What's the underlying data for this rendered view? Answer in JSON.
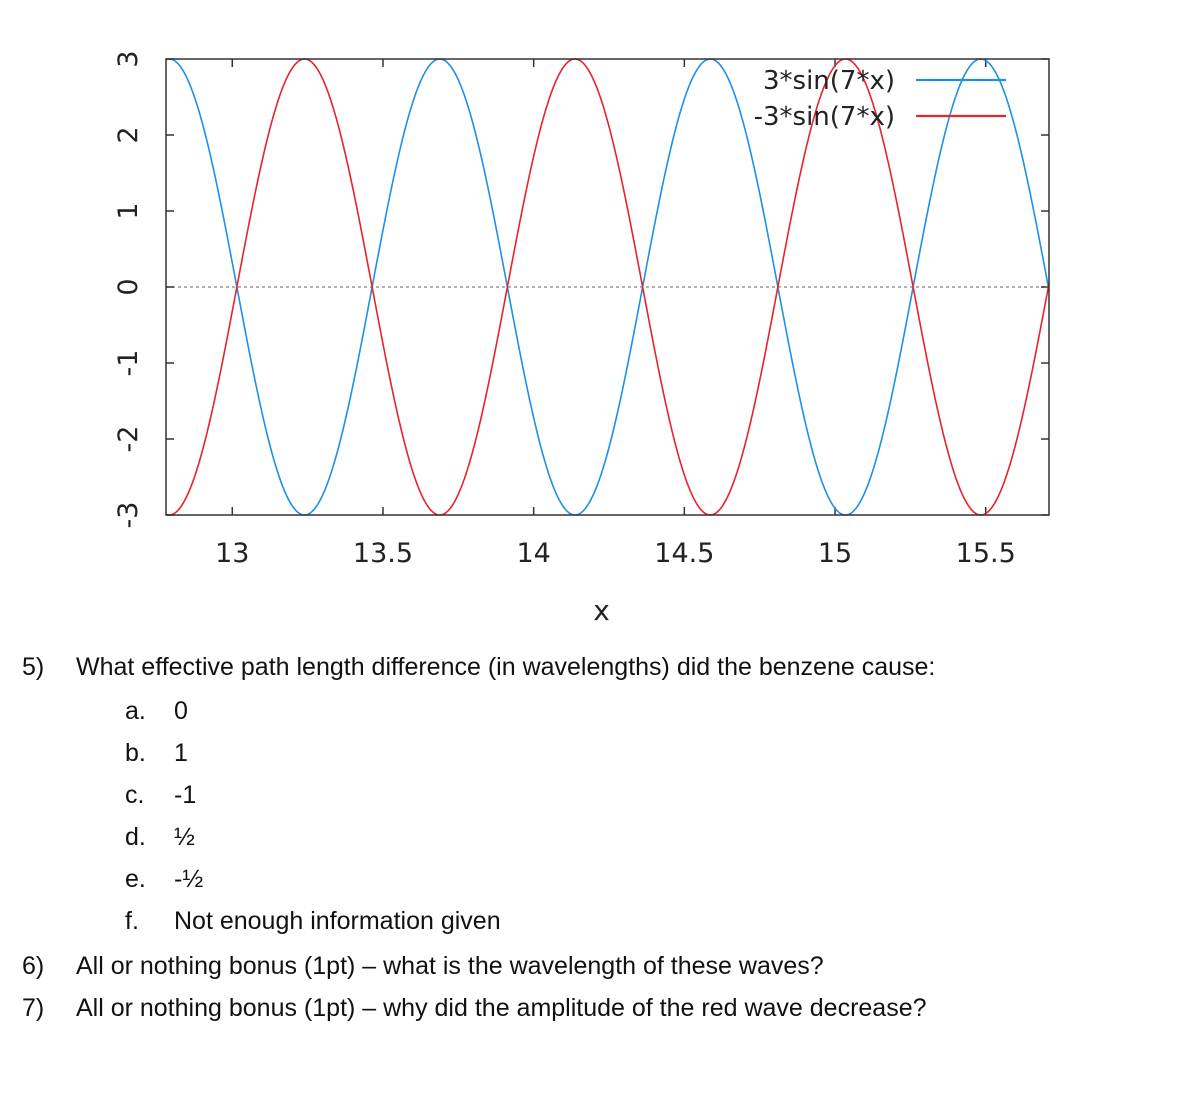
{
  "chart_data": {
    "type": "line",
    "xlabel": "x",
    "ylabel": "",
    "xlim": [
      12.78,
      15.71
    ],
    "ylim": [
      -3,
      3
    ],
    "x_ticks": [
      "13",
      "13.5",
      "14",
      "14.5",
      "15",
      "15.5"
    ],
    "y_ticks": [
      "3",
      "2",
      "1",
      "0",
      "-1",
      "-2",
      "-3"
    ],
    "zero_line": true,
    "legend_position": "top-right",
    "series": [
      {
        "name": "3*sin(7*x)",
        "color": "#1e90e6",
        "expression": "3*sin(7*x)",
        "amplitude": 3,
        "k": 7
      },
      {
        "name": "-3*sin(7*x)",
        "color": "#e8232a",
        "expression": "-3*sin(7*x)",
        "amplitude": -3,
        "k": 7
      }
    ]
  },
  "questions": {
    "q5": {
      "number": "5)",
      "text": "What effective path length difference (in wavelengths) did the benzene cause:",
      "options": [
        {
          "letter": "a.",
          "text": "0"
        },
        {
          "letter": "b.",
          "text": "1"
        },
        {
          "letter": "c.",
          "text": "-1"
        },
        {
          "letter": "d.",
          "text": "½"
        },
        {
          "letter": "e.",
          "text": "-½"
        },
        {
          "letter": "f.",
          "text": "Not enough information given"
        }
      ]
    },
    "q6": {
      "number": "6)",
      "text": "All or nothing bonus (1pt) – what is the wavelength of these waves?"
    },
    "q7": {
      "number": "7)",
      "text": "All or nothing bonus (1pt) – why did the amplitude of the red wave decrease?"
    }
  }
}
